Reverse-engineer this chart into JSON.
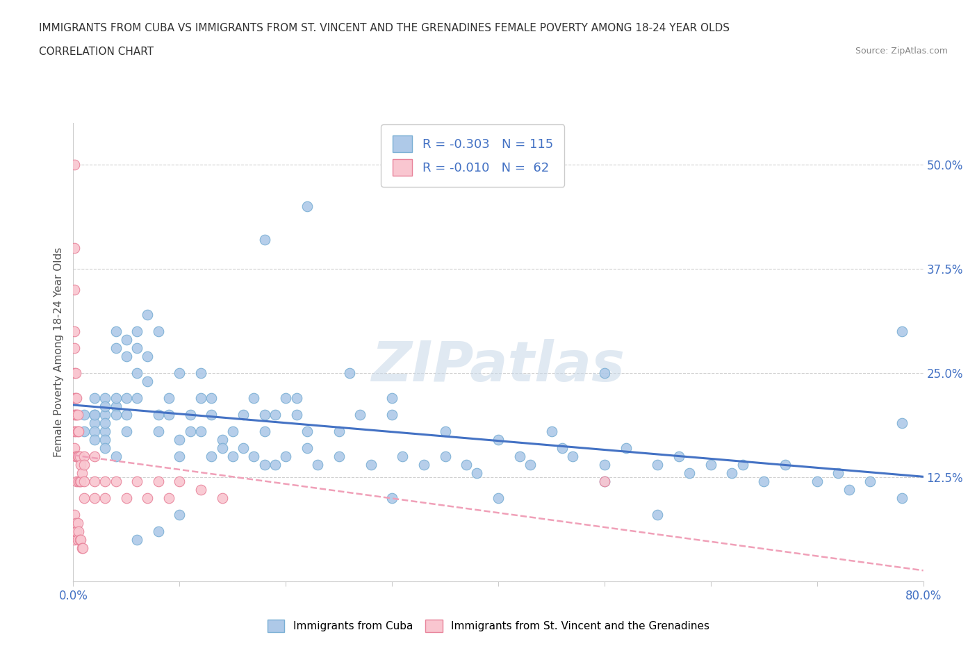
{
  "title_line1": "IMMIGRANTS FROM CUBA VS IMMIGRANTS FROM ST. VINCENT AND THE GRENADINES FEMALE POVERTY AMONG 18-24 YEAR OLDS",
  "title_line2": "CORRELATION CHART",
  "source_text": "Source: ZipAtlas.com",
  "ylabel": "Female Poverty Among 18-24 Year Olds",
  "xlim": [
    0.0,
    0.8
  ],
  "ylim": [
    0.0,
    0.55
  ],
  "yticks": [
    0.0,
    0.125,
    0.25,
    0.375,
    0.5
  ],
  "ytick_labels": [
    "",
    "12.5%",
    "25.0%",
    "37.5%",
    "50.0%"
  ],
  "xticks": [
    0.0,
    0.1,
    0.2,
    0.3,
    0.4,
    0.5,
    0.6,
    0.7,
    0.8
  ],
  "xtick_labels": [
    "0.0%",
    "",
    "",
    "",
    "",
    "",
    "",
    "",
    "80.0%"
  ],
  "cuba_facecolor": "#aec9e8",
  "cuba_edgecolor": "#7aafd4",
  "svg_facecolor": "#f9c6d0",
  "svg_edgecolor": "#e8839a",
  "cuba_R": -0.303,
  "cuba_N": 115,
  "svg_R": -0.01,
  "svg_N": 62,
  "trend_color_cuba": "#4472c4",
  "trend_color_svg": "#f0a0b8",
  "axis_label_color": "#4472c4",
  "watermark": "ZIPatlas",
  "legend_label_cuba": "Immigrants from Cuba",
  "legend_label_svg": "Immigrants from St. Vincent and the Grenadines",
  "cuba_x": [
    0.01,
    0.01,
    0.02,
    0.02,
    0.02,
    0.02,
    0.02,
    0.02,
    0.03,
    0.03,
    0.03,
    0.03,
    0.03,
    0.03,
    0.03,
    0.04,
    0.04,
    0.04,
    0.04,
    0.04,
    0.04,
    0.05,
    0.05,
    0.05,
    0.05,
    0.05,
    0.06,
    0.06,
    0.06,
    0.06,
    0.07,
    0.07,
    0.07,
    0.08,
    0.08,
    0.08,
    0.09,
    0.09,
    0.1,
    0.1,
    0.1,
    0.11,
    0.11,
    0.12,
    0.12,
    0.12,
    0.13,
    0.13,
    0.13,
    0.14,
    0.14,
    0.15,
    0.15,
    0.16,
    0.16,
    0.17,
    0.17,
    0.18,
    0.18,
    0.18,
    0.19,
    0.19,
    0.2,
    0.2,
    0.21,
    0.21,
    0.22,
    0.22,
    0.23,
    0.25,
    0.25,
    0.26,
    0.27,
    0.28,
    0.3,
    0.3,
    0.31,
    0.33,
    0.35,
    0.35,
    0.37,
    0.38,
    0.4,
    0.42,
    0.43,
    0.45,
    0.46,
    0.47,
    0.5,
    0.5,
    0.52,
    0.55,
    0.57,
    0.58,
    0.6,
    0.62,
    0.63,
    0.65,
    0.67,
    0.7,
    0.72,
    0.73,
    0.75,
    0.78,
    0.78,
    0.78,
    0.5,
    0.22,
    0.18,
    0.08,
    0.06,
    0.3,
    0.1,
    0.4,
    0.55
  ],
  "cuba_y": [
    0.2,
    0.18,
    0.22,
    0.2,
    0.19,
    0.18,
    0.17,
    0.2,
    0.22,
    0.2,
    0.21,
    0.18,
    0.19,
    0.17,
    0.16,
    0.21,
    0.28,
    0.3,
    0.2,
    0.22,
    0.15,
    0.27,
    0.29,
    0.22,
    0.2,
    0.18,
    0.3,
    0.28,
    0.25,
    0.22,
    0.32,
    0.27,
    0.24,
    0.3,
    0.2,
    0.18,
    0.2,
    0.22,
    0.15,
    0.17,
    0.25,
    0.18,
    0.2,
    0.22,
    0.25,
    0.18,
    0.2,
    0.22,
    0.15,
    0.17,
    0.16,
    0.15,
    0.18,
    0.2,
    0.16,
    0.22,
    0.15,
    0.18,
    0.2,
    0.14,
    0.14,
    0.2,
    0.22,
    0.15,
    0.2,
    0.22,
    0.16,
    0.18,
    0.14,
    0.18,
    0.15,
    0.25,
    0.2,
    0.14,
    0.2,
    0.22,
    0.15,
    0.14,
    0.18,
    0.15,
    0.14,
    0.13,
    0.17,
    0.15,
    0.14,
    0.18,
    0.16,
    0.15,
    0.14,
    0.12,
    0.16,
    0.14,
    0.15,
    0.13,
    0.14,
    0.13,
    0.14,
    0.12,
    0.14,
    0.12,
    0.13,
    0.11,
    0.12,
    0.1,
    0.19,
    0.3,
    0.25,
    0.45,
    0.41,
    0.06,
    0.05,
    0.1,
    0.08,
    0.1,
    0.08
  ],
  "svg_x": [
    0.001,
    0.001,
    0.001,
    0.001,
    0.001,
    0.001,
    0.001,
    0.001,
    0.001,
    0.001,
    0.002,
    0.002,
    0.002,
    0.002,
    0.002,
    0.003,
    0.003,
    0.003,
    0.003,
    0.004,
    0.004,
    0.004,
    0.005,
    0.005,
    0.005,
    0.006,
    0.006,
    0.007,
    0.007,
    0.008,
    0.01,
    0.01,
    0.01,
    0.01,
    0.02,
    0.02,
    0.02,
    0.03,
    0.03,
    0.04,
    0.05,
    0.06,
    0.07,
    0.08,
    0.09,
    0.1,
    0.12,
    0.14,
    0.5,
    0.001,
    0.001,
    0.001,
    0.002,
    0.002,
    0.003,
    0.004,
    0.004,
    0.005,
    0.006,
    0.007,
    0.008,
    0.009
  ],
  "svg_y": [
    0.5,
    0.4,
    0.35,
    0.3,
    0.28,
    0.25,
    0.22,
    0.2,
    0.18,
    0.16,
    0.25,
    0.22,
    0.2,
    0.18,
    0.15,
    0.22,
    0.2,
    0.15,
    0.12,
    0.2,
    0.18,
    0.15,
    0.18,
    0.15,
    0.12,
    0.15,
    0.12,
    0.14,
    0.12,
    0.13,
    0.15,
    0.12,
    0.14,
    0.1,
    0.15,
    0.12,
    0.1,
    0.12,
    0.1,
    0.12,
    0.1,
    0.12,
    0.1,
    0.12,
    0.1,
    0.12,
    0.11,
    0.1,
    0.12,
    0.05,
    0.08,
    0.06,
    0.07,
    0.06,
    0.06,
    0.07,
    0.05,
    0.06,
    0.05,
    0.05,
    0.04,
    0.04
  ]
}
